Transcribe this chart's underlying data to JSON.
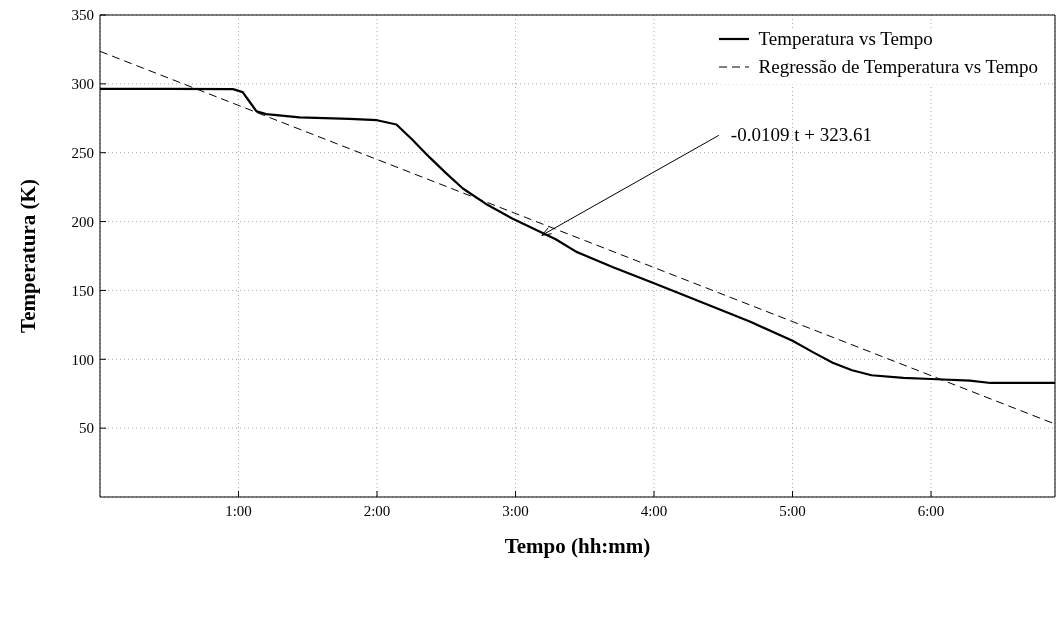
{
  "chart_data": {
    "type": "line",
    "xlabel": "Tempo (hh:mm)",
    "ylabel": "Temperatura (K)",
    "xlim": [
      0,
      6.895
    ],
    "xticks": [
      {
        "value": 1,
        "label": "1:00"
      },
      {
        "value": 2,
        "label": "2:00"
      },
      {
        "value": 3,
        "label": "3:00"
      },
      {
        "value": 4,
        "label": "4:00"
      },
      {
        "value": 5,
        "label": "5:00"
      },
      {
        "value": 6,
        "label": "6:00"
      }
    ],
    "ylim": [
      0,
      350
    ],
    "yticks": [
      50,
      100,
      150,
      200,
      250,
      300,
      350
    ],
    "grid": true,
    "legend": "top right",
    "marker": "none",
    "series": [
      {
        "name": "Temperatura vs Tempo",
        "color": "#000000",
        "line_style": "solid",
        "x": [
          0,
          0.5,
          0.96,
          1.03,
          1.08,
          1.13,
          1.2,
          1.44,
          1.8,
          2.0,
          2.14,
          2.25,
          2.38,
          2.5,
          2.62,
          2.8,
          2.98,
          3.29,
          3.44,
          3.7,
          4.0,
          4.43,
          4.7,
          5.0,
          5.15,
          5.29,
          5.43,
          5.57,
          5.8,
          6.0,
          6.28,
          6.43,
          6.895
        ],
        "values": [
          296.3,
          296.3,
          296.2,
          294,
          287,
          280,
          278,
          275.7,
          274.5,
          273.6,
          270.5,
          260,
          246.6,
          235,
          224,
          212,
          202,
          187.2,
          178,
          167,
          155.2,
          138,
          127,
          113.5,
          105,
          97.5,
          92,
          88.4,
          86.5,
          85.7,
          84.5,
          82.8,
          82.8
        ]
      },
      {
        "name": "Regressão de Temperatura vs Tempo",
        "color": "#000000",
        "line_style": "dashed",
        "x": [
          0,
          6.895
        ],
        "values": [
          323.61,
          53
        ]
      }
    ],
    "annotations": [
      {
        "text": "-0.0109 t + 323.61",
        "x": 3.19,
        "y": 190
      }
    ]
  }
}
